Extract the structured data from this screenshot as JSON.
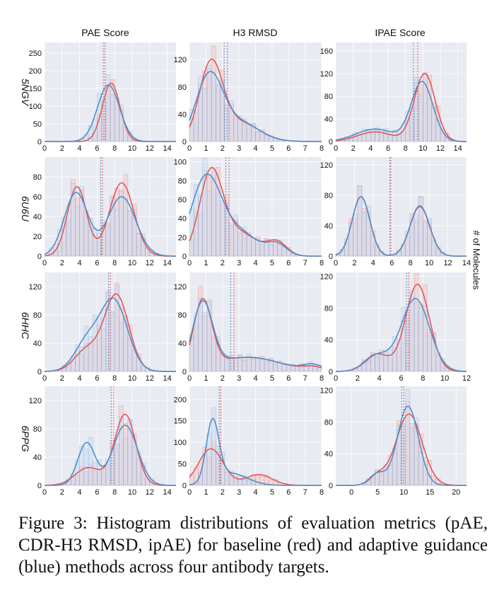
{
  "column_titles": [
    "PAE Score",
    "H3 RMSD",
    "IPAE Score"
  ],
  "row_labels": [
    "5NGV",
    "6U6U",
    "6HHC",
    "6PPG"
  ],
  "side_label": "# of Molecules",
  "caption": "Figure 3: Histogram distributions of evaluation metrics (pAE, CDR-H3 RMSD, ipAE) for baseline (red) and adaptive guidance (blue) methods across four antibody targets.",
  "colors": {
    "baseline": "#e4585a",
    "adaptive": "#4f8fc9",
    "baseline_fill": "#f7c9c9",
    "adaptive_fill": "#c9dcf1",
    "panel_bg": "#e9ebf2"
  },
  "chart_data": [
    {
      "type": "bar",
      "title": "5NGV PAE Score",
      "xlim": [
        0,
        15
      ],
      "ylim": [
        0,
        280
      ],
      "xticks": [
        0,
        2,
        4,
        6,
        8,
        10,
        12,
        14
      ],
      "yticks": [
        0,
        50,
        100,
        150,
        200,
        250
      ],
      "baseline": {
        "peaks": [
          [
            7.6,
            165,
            1.0
          ]
        ],
        "mean": 6.9
      },
      "adaptive": {
        "peaks": [
          [
            7.3,
            160,
            1.25
          ]
        ],
        "mean": 6.7
      }
    },
    {
      "type": "bar",
      "title": "5NGV H3 RMSD",
      "xlim": [
        0,
        8
      ],
      "ylim": [
        0,
        145
      ],
      "xticks": [
        0,
        1,
        2,
        3,
        4,
        5,
        6,
        7,
        8
      ],
      "yticks": [
        0,
        40,
        80,
        120
      ],
      "baseline": {
        "peaks": [
          [
            1.3,
            110,
            0.7
          ],
          [
            3.0,
            28,
            1.2
          ]
        ],
        "mean": 2.3
      },
      "adaptive": {
        "peaks": [
          [
            1.2,
            93,
            0.8
          ],
          [
            3.0,
            28,
            1.2
          ]
        ],
        "mean": 2.1
      }
    },
    {
      "type": "bar",
      "title": "5NGV IPAE Score",
      "xlim": [
        0,
        15
      ],
      "ylim": [
        0,
        175
      ],
      "xticks": [
        0,
        2,
        4,
        6,
        8,
        10,
        12,
        14
      ],
      "yticks": [
        0,
        40,
        80,
        120,
        160
      ],
      "baseline": {
        "peaks": [
          [
            10.2,
            120,
            1.2
          ],
          [
            4.5,
            17,
            2.0
          ]
        ],
        "mean": 9.4
      },
      "adaptive": {
        "peaks": [
          [
            9.9,
            105,
            1.25
          ],
          [
            4.5,
            22,
            2.2
          ]
        ],
        "mean": 8.9
      }
    },
    {
      "type": "bar",
      "title": "6U6U PAE Score",
      "xlim": [
        0,
        15
      ],
      "ylim": [
        0,
        100
      ],
      "xticks": [
        0,
        2,
        4,
        6,
        8,
        10,
        12,
        14
      ],
      "yticks": [
        0,
        20,
        40,
        60,
        80
      ],
      "baseline": {
        "peaks": [
          [
            3.7,
            70,
            1.1
          ],
          [
            8.8,
            74,
            1.4
          ]
        ],
        "mean": 6.6
      },
      "adaptive": {
        "peaks": [
          [
            3.6,
            64,
            1.35
          ],
          [
            8.8,
            60,
            1.6
          ]
        ],
        "mean": 6.4
      }
    },
    {
      "type": "bar",
      "title": "6U6U H3 RMSD",
      "xlim": [
        0,
        8
      ],
      "ylim": [
        0,
        105
      ],
      "xticks": [
        0,
        1,
        2,
        3,
        4,
        5,
        6,
        7,
        8
      ],
      "yticks": [
        0,
        20,
        40,
        60,
        80,
        100
      ],
      "baseline": {
        "peaks": [
          [
            1.3,
            86,
            0.7
          ],
          [
            3.0,
            25,
            1.1
          ],
          [
            5.3,
            14,
            0.6
          ]
        ],
        "mean": 2.4
      },
      "adaptive": {
        "peaks": [
          [
            1.0,
            82,
            0.9
          ],
          [
            3.0,
            25,
            1.1
          ],
          [
            5.3,
            12,
            0.6
          ]
        ],
        "mean": 2.2
      }
    },
    {
      "type": "bar",
      "title": "6U6U IPAE Score",
      "xlim": [
        0,
        14
      ],
      "ylim": [
        0,
        130
      ],
      "xticks": [
        0,
        2,
        4,
        6,
        8,
        10,
        12,
        14
      ],
      "yticks": [
        0,
        40,
        80,
        120
      ],
      "baseline": {
        "peaks": [
          [
            2.7,
            78,
            0.95
          ],
          [
            9.0,
            65,
            1.05
          ]
        ],
        "mean": 5.9
      },
      "adaptive": {
        "peaks": [
          [
            2.7,
            78,
            0.95
          ],
          [
            9.0,
            66,
            1.05
          ]
        ],
        "mean": 5.8
      }
    },
    {
      "type": "bar",
      "title": "6HHC PAE Score",
      "xlim": [
        0,
        15
      ],
      "ylim": [
        0,
        140
      ],
      "xticks": [
        0,
        2,
        4,
        6,
        8,
        10,
        12,
        14
      ],
      "yticks": [
        0,
        40,
        80,
        120
      ],
      "baseline": {
        "peaks": [
          [
            8.2,
            108,
            1.4
          ],
          [
            4.8,
            30,
            1.4
          ]
        ],
        "mean": 7.5
      },
      "adaptive": {
        "peaks": [
          [
            7.9,
            100,
            1.55
          ],
          [
            4.8,
            40,
            1.4
          ]
        ],
        "mean": 7.3
      }
    },
    {
      "type": "bar",
      "title": "6HHC H3 RMSD",
      "xlim": [
        0,
        8
      ],
      "ylim": [
        0,
        140
      ],
      "xticks": [
        0,
        1,
        2,
        3,
        4,
        5,
        6,
        7,
        8
      ],
      "yticks": [
        0,
        40,
        80,
        120
      ],
      "baseline": {
        "peaks": [
          [
            0.8,
            95,
            0.55
          ],
          [
            3.5,
            20,
            2.0
          ],
          [
            7.5,
            5,
            0.6
          ]
        ],
        "mean": 2.7
      },
      "adaptive": {
        "peaks": [
          [
            0.8,
            92,
            0.6
          ],
          [
            3.5,
            20,
            2.0
          ],
          [
            7.5,
            8,
            0.6
          ]
        ],
        "mean": 2.5
      }
    },
    {
      "type": "bar",
      "title": "6HHC IPAE Score",
      "xlim": [
        0,
        12
      ],
      "ylim": [
        0,
        125
      ],
      "xticks": [
        0,
        2,
        4,
        6,
        8,
        10,
        12
      ],
      "yticks": [
        0,
        40,
        80,
        120
      ],
      "baseline": {
        "peaks": [
          [
            7.5,
            110,
            1.1
          ],
          [
            3.8,
            22,
            1.1
          ]
        ],
        "mean": 6.7
      },
      "adaptive": {
        "peaks": [
          [
            7.3,
            92,
            1.3
          ],
          [
            3.8,
            20,
            1.1
          ]
        ],
        "mean": 6.5
      }
    },
    {
      "type": "bar",
      "title": "6PPG PAE Score",
      "xlim": [
        0,
        15
      ],
      "ylim": [
        0,
        140
      ],
      "xticks": [
        0,
        2,
        4,
        6,
        8,
        10,
        12,
        14
      ],
      "yticks": [
        0,
        40,
        80,
        120
      ],
      "baseline": {
        "peaks": [
          [
            9.2,
            100,
            1.2
          ],
          [
            5.0,
            25,
            1.5
          ]
        ],
        "mean": 7.9
      },
      "adaptive": {
        "peaks": [
          [
            9.2,
            85,
            1.4
          ],
          [
            4.8,
            60,
            1.0
          ]
        ],
        "mean": 7.6
      }
    },
    {
      "type": "bar",
      "title": "6PPG H3 RMSD",
      "xlim": [
        0,
        8
      ],
      "ylim": [
        0,
        230
      ],
      "xticks": [
        0,
        1,
        2,
        3,
        4,
        5,
        6,
        7,
        8
      ],
      "yticks": [
        0,
        50,
        100,
        150,
        200
      ],
      "baseline": {
        "peaks": [
          [
            1.3,
            85,
            0.75
          ],
          [
            4.2,
            25,
            0.8
          ]
        ],
        "mean": 1.9
      },
      "adaptive": {
        "peaks": [
          [
            1.4,
            140,
            0.38
          ],
          [
            2.5,
            28,
            1.0
          ]
        ],
        "mean": 1.8
      }
    },
    {
      "type": "bar",
      "title": "6PPG IPAE Score",
      "xlim": [
        -3,
        22
      ],
      "ylim": [
        0,
        125
      ],
      "xticks": [
        0,
        5,
        10,
        15,
        20
      ],
      "yticks": [
        0,
        40,
        80,
        120
      ],
      "baseline": {
        "peaks": [
          [
            11.0,
            90,
            2.5
          ],
          [
            5.0,
            12,
            1.5
          ]
        ],
        "mean": 10.0
      },
      "adaptive": {
        "peaks": [
          [
            10.8,
            100,
            2.0
          ],
          [
            5.0,
            15,
            1.5
          ]
        ],
        "mean": 9.6
      }
    }
  ]
}
